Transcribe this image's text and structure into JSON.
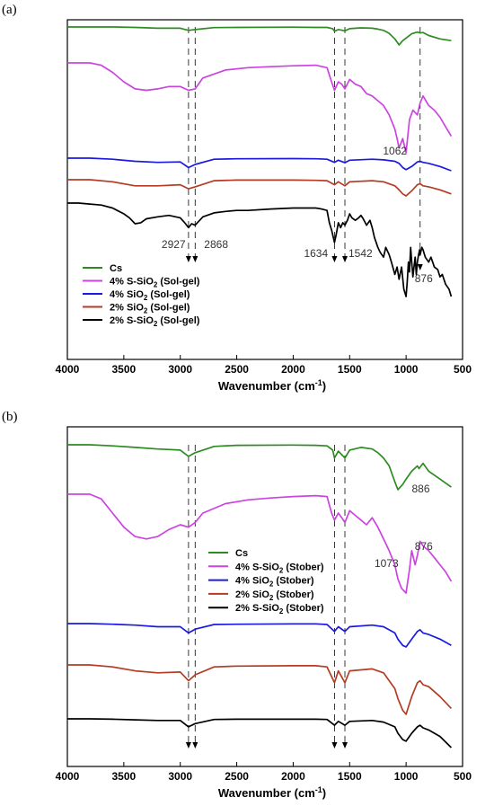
{
  "chart_data": [
    {
      "panel": "(a)",
      "type": "line",
      "x_axis": {
        "label_prefix": "Wavenumber (cm",
        "label_sup": "-1",
        "label_suffix": ")",
        "reversed": true,
        "xlim": [
          4000,
          500
        ],
        "ticks": [
          "4000",
          "3500",
          "3000",
          "2500",
          "2000",
          "1500",
          "1000",
          "500"
        ]
      },
      "legend": {
        "placement": "lower-left",
        "entries": [
          {
            "series": 0,
            "pre": "Cs",
            "sub": "",
            "post": ""
          },
          {
            "series": 1,
            "pre": "4% S-SiO",
            "sub": "2",
            "post": " (Sol-gel)"
          },
          {
            "series": 2,
            "pre": "4% SiO",
            "sub": "2",
            "post": " (Sol-gel)"
          },
          {
            "series": 3,
            "pre": "2% SiO",
            "sub": "2",
            "post": " (Sol-gel)"
          },
          {
            "series": 4,
            "pre": "2% S-SiO",
            "sub": "2",
            "post": " (Sol-gel)"
          }
        ]
      },
      "annotations": [
        {
          "text": "1062",
          "x": 1062
        },
        {
          "text": "2927",
          "x": 2927
        },
        {
          "text": "2868",
          "x": 2868
        },
        {
          "text": "1634",
          "x": 1634
        },
        {
          "text": "1542",
          "x": 1542
        },
        {
          "text": "876",
          "x": 876
        }
      ],
      "reference_lines_x": [
        2927,
        2868,
        1634,
        1542,
        876
      ],
      "series": [
        {
          "color": "#2e8b22",
          "x": [
            4000,
            3800,
            3600,
            3400,
            3200,
            3000,
            2927,
            2868,
            2700,
            2500,
            2000,
            1800,
            1700,
            1650,
            1634,
            1600,
            1542,
            1500,
            1400,
            1300,
            1250,
            1200,
            1150,
            1100,
            1062,
            1030,
            1000,
            950,
            900,
            876,
            850,
            800,
            700,
            600
          ],
          "y": [
            1,
            1,
            1,
            0.99,
            0.97,
            0.97,
            0.92,
            0.94,
            0.985,
            0.99,
            0.995,
            0.99,
            0.99,
            0.96,
            0.9,
            0.94,
            0.91,
            0.96,
            0.98,
            0.97,
            0.95,
            0.92,
            0.85,
            0.72,
            0.58,
            0.68,
            0.74,
            0.84,
            0.88,
            0.86,
            0.87,
            0.8,
            0.72,
            0.68
          ]
        },
        {
          "color": "#cc44e0",
          "x": [
            4000,
            3800,
            3700,
            3600,
            3500,
            3400,
            3300,
            3200,
            3100,
            3000,
            2927,
            2868,
            2800,
            2600,
            2400,
            2200,
            2000,
            1800,
            1700,
            1660,
            1634,
            1600,
            1570,
            1542,
            1500,
            1450,
            1400,
            1350,
            1300,
            1250,
            1200,
            1150,
            1100,
            1080,
            1062,
            1030,
            1000,
            970,
            940,
            900,
            876,
            850,
            800,
            750,
            700,
            650,
            600
          ],
          "y": [
            1,
            1,
            0.95,
            0.8,
            0.6,
            0.45,
            0.42,
            0.45,
            0.5,
            0.5,
            0.42,
            0.45,
            0.68,
            0.85,
            0.9,
            0.92,
            0.94,
            0.95,
            0.9,
            0.6,
            0.42,
            0.6,
            0.55,
            0.45,
            0.65,
            0.55,
            0.5,
            0.35,
            0.3,
            0.2,
            0.1,
            -0.1,
            -0.4,
            -0.6,
            -0.8,
            -0.6,
            -0.9,
            -0.2,
            0,
            -0.1,
            0.15,
            0.3,
            0.1,
            0,
            -0.15,
            -0.35,
            -0.55
          ]
        },
        {
          "color": "#1a1ae0",
          "x": [
            4000,
            3800,
            3600,
            3400,
            3200,
            3000,
            2927,
            2868,
            2700,
            2500,
            2000,
            1800,
            1700,
            1634,
            1600,
            1542,
            1500,
            1300,
            1200,
            1100,
            1062,
            1030,
            1000,
            950,
            900,
            876,
            850,
            800,
            700,
            600
          ],
          "y": [
            1,
            1,
            0.95,
            0.85,
            0.8,
            0.82,
            0.55,
            0.7,
            0.95,
            0.97,
            0.98,
            0.97,
            0.95,
            0.8,
            0.9,
            0.78,
            0.9,
            0.95,
            0.92,
            0.85,
            0.75,
            0.55,
            0.45,
            0.6,
            0.82,
            0.85,
            0.8,
            0.75,
            0.6,
            0.4
          ]
        },
        {
          "color": "#b43c24",
          "x": [
            4000,
            3800,
            3600,
            3400,
            3200,
            3000,
            2927,
            2868,
            2700,
            2500,
            2000,
            1800,
            1700,
            1634,
            1600,
            1542,
            1500,
            1300,
            1200,
            1100,
            1062,
            1030,
            1000,
            950,
            900,
            876,
            850,
            800,
            700,
            600
          ],
          "y": [
            1,
            1,
            0.9,
            0.7,
            0.7,
            0.75,
            0.55,
            0.65,
            0.95,
            0.98,
            0.98,
            0.97,
            0.95,
            0.75,
            0.9,
            0.7,
            0.9,
            0.95,
            0.9,
            0.7,
            0.5,
            0.3,
            0.2,
            0.45,
            0.75,
            0.8,
            0.7,
            0.65,
            0.5,
            0.3
          ]
        },
        {
          "color": "#000000",
          "x": [
            4000,
            3900,
            3800,
            3700,
            3600,
            3500,
            3450,
            3400,
            3350,
            3300,
            3200,
            3100,
            3000,
            2960,
            2927,
            2900,
            2868,
            2800,
            2700,
            2600,
            2500,
            2400,
            2200,
            2000,
            1800,
            1750,
            1700,
            1680,
            1660,
            1634,
            1620,
            1600,
            1580,
            1560,
            1542,
            1520,
            1500,
            1480,
            1450,
            1420,
            1400,
            1380,
            1350,
            1320,
            1300,
            1280,
            1250,
            1230,
            1200,
            1180,
            1150,
            1130,
            1100,
            1080,
            1062,
            1040,
            1020,
            1000,
            990,
            980,
            970,
            960,
            950,
            940,
            930,
            920,
            910,
            900,
            890,
            880,
            876,
            860,
            850,
            830,
            800,
            780,
            750,
            720,
            700,
            680,
            650,
            620,
            600
          ],
          "y": [
            1,
            1,
            0.98,
            0.96,
            0.9,
            0.78,
            0.7,
            0.58,
            0.6,
            0.68,
            0.72,
            0.75,
            0.7,
            0.6,
            0.5,
            0.58,
            0.55,
            0.72,
            0.8,
            0.83,
            0.85,
            0.85,
            0.88,
            0.9,
            0.9,
            0.88,
            0.85,
            0.6,
            0.45,
            0.2,
            0.35,
            0.6,
            0.5,
            0.6,
            0.55,
            0.65,
            0.78,
            0.7,
            0.65,
            0.7,
            0.75,
            0.68,
            0.55,
            0.65,
            0.5,
            0.3,
            0.1,
            0,
            -0.1,
            0.1,
            -0.05,
            -0.2,
            -0.45,
            -0.3,
            -0.55,
            -0.3,
            -0.75,
            -0.9,
            -0.6,
            -0.2,
            -0.4,
            0.1,
            -0.2,
            -0.5,
            -0.3,
            -0.1,
            -0.45,
            -0.2,
            -0.05,
            0.05,
            -0.05,
            0.1,
            0.05,
            -0.1,
            -0.2,
            -0.1,
            -0.3,
            -0.35,
            -0.5,
            -0.45,
            -0.65,
            -0.75,
            -0.9
          ]
        }
      ]
    },
    {
      "panel": "(b)",
      "type": "line",
      "x_axis": {
        "label_prefix": "Wavenumber (cm",
        "label_sup": "-1",
        "label_suffix": ")",
        "reversed": true,
        "xlim": [
          4000,
          500
        ],
        "ticks": [
          "4000",
          "3500",
          "3000",
          "2500",
          "2000",
          "1500",
          "1000",
          "500"
        ]
      },
      "legend": {
        "placement": "center-right",
        "entries": [
          {
            "series": 0,
            "pre": "Cs",
            "sub": "",
            "post": ""
          },
          {
            "series": 1,
            "pre": "4% S-SiO",
            "sub": "2",
            "post": " (Stober)"
          },
          {
            "series": 2,
            "pre": "4% SiO",
            "sub": "2",
            "post": " (Stober)"
          },
          {
            "series": 3,
            "pre": "2% SiO",
            "sub": "2",
            "post": "   (Stober)"
          },
          {
            "series": 4,
            "pre": "2% S-SiO",
            "sub": "2",
            "post": " (Stober)"
          }
        ]
      },
      "annotations": [
        {
          "text": "886",
          "x": 886
        },
        {
          "text": "876",
          "x": 876
        },
        {
          "text": "1073",
          "x": 1073
        }
      ],
      "reference_lines_x": [
        2927,
        2868,
        1634,
        1542
      ],
      "series": [
        {
          "color": "#2e8b22",
          "x": [
            4000,
            3800,
            3600,
            3400,
            3200,
            3000,
            2927,
            2868,
            2700,
            2500,
            2000,
            1800,
            1700,
            1650,
            1634,
            1600,
            1542,
            1500,
            1400,
            1300,
            1250,
            1200,
            1150,
            1100,
            1073,
            1030,
            1000,
            950,
            900,
            886,
            850,
            800,
            700,
            600
          ],
          "y": [
            1,
            1,
            0.98,
            0.95,
            0.92,
            0.9,
            0.78,
            0.85,
            0.97,
            0.99,
            0.995,
            0.99,
            0.98,
            0.9,
            0.75,
            0.88,
            0.75,
            0.9,
            0.95,
            0.92,
            0.85,
            0.75,
            0.6,
            0.3,
            0.15,
            0.25,
            0.35,
            0.5,
            0.6,
            0.55,
            0.65,
            0.5,
            0.35,
            0.2
          ]
        },
        {
          "color": "#cc44e0",
          "x": [
            4000,
            3800,
            3700,
            3600,
            3500,
            3400,
            3300,
            3200,
            3100,
            3000,
            2927,
            2868,
            2800,
            2600,
            2400,
            2200,
            2000,
            1800,
            1700,
            1660,
            1634,
            1600,
            1570,
            1542,
            1500,
            1450,
            1400,
            1350,
            1300,
            1250,
            1200,
            1150,
            1100,
            1073,
            1040,
            1000,
            970,
            950,
            920,
            900,
            876,
            850,
            800,
            750,
            700,
            650,
            600
          ],
          "y": [
            1,
            1,
            0.9,
            0.6,
            0.3,
            0.1,
            0.05,
            0.1,
            0.25,
            0.35,
            0.3,
            0.4,
            0.6,
            0.8,
            0.88,
            0.92,
            0.95,
            0.97,
            0.95,
            0.6,
            0.45,
            0.6,
            0.5,
            0.4,
            0.65,
            0.55,
            0.45,
            0.35,
            0.5,
            0.3,
            0.05,
            -0.2,
            -0.5,
            -0.8,
            -1.0,
            -1.1,
            -0.6,
            -0.2,
            -0.5,
            -0.3,
            0.0,
            -0.1,
            -0.2,
            -0.35,
            -0.5,
            -0.65,
            -0.85
          ]
        },
        {
          "color": "#1a1ae0",
          "x": [
            4000,
            3800,
            3600,
            3400,
            3200,
            3000,
            2927,
            2868,
            2700,
            2500,
            2000,
            1800,
            1700,
            1634,
            1600,
            1542,
            1500,
            1300,
            1200,
            1100,
            1073,
            1030,
            1000,
            950,
            900,
            876,
            850,
            800,
            700,
            600
          ],
          "y": [
            1,
            1,
            0.98,
            0.95,
            0.9,
            0.9,
            0.7,
            0.82,
            0.97,
            0.98,
            0.99,
            0.99,
            0.97,
            0.75,
            0.9,
            0.75,
            0.9,
            0.95,
            0.9,
            0.7,
            0.5,
            0.3,
            0.25,
            0.5,
            0.75,
            0.8,
            0.7,
            0.65,
            0.5,
            0.3
          ]
        },
        {
          "color": "#b43c24",
          "x": [
            4000,
            3800,
            3600,
            3400,
            3200,
            3000,
            2927,
            2868,
            2700,
            2500,
            2000,
            1800,
            1700,
            1634,
            1600,
            1542,
            1500,
            1300,
            1200,
            1100,
            1073,
            1030,
            1000,
            950,
            900,
            876,
            850,
            800,
            700,
            600
          ],
          "y": [
            1,
            1,
            0.95,
            0.85,
            0.8,
            0.82,
            0.6,
            0.75,
            0.95,
            0.97,
            0.98,
            0.98,
            0.95,
            0.55,
            0.85,
            0.55,
            0.85,
            0.9,
            0.8,
            0.4,
            0.15,
            -0.15,
            -0.25,
            0.2,
            0.55,
            0.6,
            0.5,
            0.45,
            0.2,
            -0.1
          ]
        },
        {
          "color": "#000000",
          "x": [
            4000,
            3800,
            3600,
            3400,
            3200,
            3000,
            2927,
            2868,
            2700,
            2500,
            2000,
            1800,
            1700,
            1634,
            1600,
            1542,
            1500,
            1300,
            1200,
            1100,
            1073,
            1030,
            1000,
            950,
            900,
            876,
            850,
            800,
            700,
            600
          ],
          "y": [
            1,
            1,
            0.99,
            0.97,
            0.95,
            0.95,
            0.75,
            0.85,
            0.98,
            0.99,
            0.99,
            0.99,
            0.98,
            0.8,
            0.92,
            0.8,
            0.92,
            0.95,
            0.9,
            0.75,
            0.55,
            0.35,
            0.3,
            0.55,
            0.75,
            0.8,
            0.72,
            0.65,
            0.45,
            0.1
          ]
        }
      ]
    }
  ]
}
